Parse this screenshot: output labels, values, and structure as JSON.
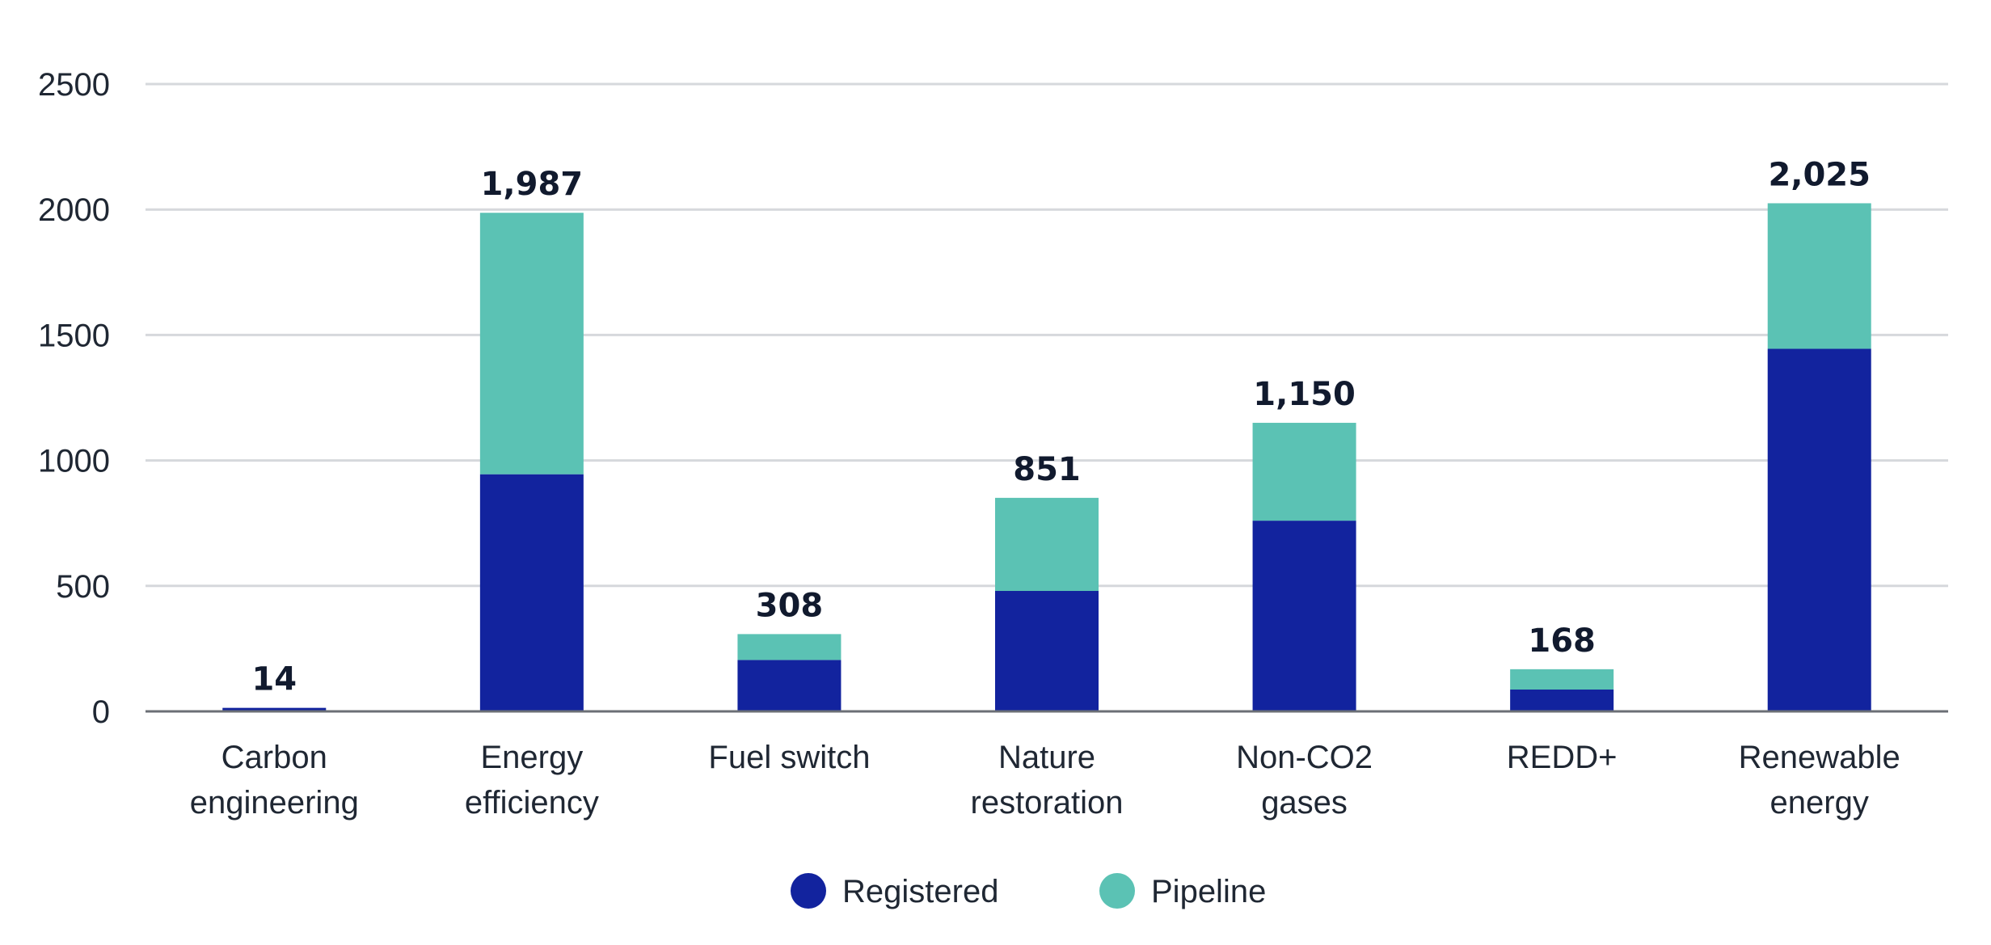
{
  "chart_data": {
    "type": "bar",
    "stacked": true,
    "title": "",
    "xlabel": "",
    "ylabel": "",
    "ylim": [
      0,
      2500
    ],
    "yticks": [
      0,
      500,
      1000,
      1500,
      2000,
      2500
    ],
    "ytick_labels": [
      "0",
      "500",
      "1000",
      "1500",
      "2000",
      "2500"
    ],
    "grid": true,
    "legend_position": "bottom-center",
    "categories": [
      [
        "Carbon",
        "engineering"
      ],
      [
        "Energy",
        "efficiency"
      ],
      [
        "Fuel switch"
      ],
      [
        "Nature",
        "restoration"
      ],
      [
        "Non-CO2",
        "gases"
      ],
      [
        "REDD+"
      ],
      [
        "Renewable",
        "energy"
      ]
    ],
    "series": [
      {
        "name": "Registered",
        "color": "#12239e",
        "values": [
          14,
          945,
          205,
          480,
          760,
          87,
          1445
        ]
      },
      {
        "name": "Pipeline",
        "color": "#5bc2b4",
        "values": [
          0,
          1042,
          103,
          371,
          390,
          81,
          580
        ]
      }
    ],
    "totals": [
      14,
      1987,
      308,
      851,
      1150,
      168,
      2025
    ],
    "total_labels": [
      "14",
      "1,987",
      "308",
      "851",
      "1,150",
      "168",
      "2,025"
    ]
  }
}
